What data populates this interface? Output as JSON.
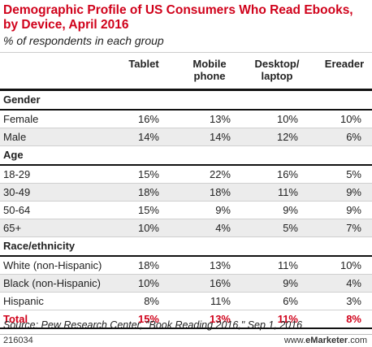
{
  "title": "Demographic Profile of US Consumers Who Read Ebooks, by Device, April 2016",
  "subtitle": "% of respondents in each group",
  "columns": [
    "Tablet",
    "Mobile phone",
    "Desktop/ laptop",
    "Ereader"
  ],
  "sections": [
    {
      "name": "Gender",
      "rows": [
        {
          "label": "Female",
          "values": [
            "16%",
            "13%",
            "10%",
            "10%"
          ]
        },
        {
          "label": "Male",
          "values": [
            "14%",
            "14%",
            "12%",
            "6%"
          ]
        }
      ]
    },
    {
      "name": "Age",
      "rows": [
        {
          "label": "18-29",
          "values": [
            "15%",
            "22%",
            "16%",
            "5%"
          ]
        },
        {
          "label": "30-49",
          "values": [
            "18%",
            "18%",
            "11%",
            "9%"
          ]
        },
        {
          "label": "50-64",
          "values": [
            "15%",
            "9%",
            "9%",
            "9%"
          ]
        },
        {
          "label": "65+",
          "values": [
            "10%",
            "4%",
            "5%",
            "7%"
          ]
        }
      ]
    },
    {
      "name": "Race/ethnicity",
      "rows": [
        {
          "label": "White (non-Hispanic)",
          "values": [
            "18%",
            "13%",
            "11%",
            "10%"
          ]
        },
        {
          "label": "Black (non-Hispanic)",
          "values": [
            "10%",
            "16%",
            "9%",
            "4%"
          ]
        },
        {
          "label": "Hispanic",
          "values": [
            "8%",
            "11%",
            "6%",
            "3%"
          ]
        }
      ]
    }
  ],
  "total": {
    "label": "Total",
    "values": [
      "15%",
      "13%",
      "11%",
      "8%"
    ]
  },
  "source": "Source: Pew Research Center, \"Book Reading 2016,\" Sep 1, 2016",
  "footer": {
    "id": "216034",
    "url_prefix": "www.",
    "url_brand": "eMarketer",
    "url_suffix": ".com"
  },
  "colors": {
    "accent": "#d0021b",
    "alt_row": "#ececec"
  },
  "chart_data": {
    "type": "table",
    "title": "Demographic Profile of US Consumers Who Read Ebooks, by Device, April 2016",
    "subtitle": "% of respondents in each group",
    "columns": [
      "Tablet",
      "Mobile phone",
      "Desktop/laptop",
      "Ereader"
    ],
    "rows": [
      {
        "group": "Gender",
        "label": "Female",
        "values": [
          16,
          13,
          10,
          10
        ]
      },
      {
        "group": "Gender",
        "label": "Male",
        "values": [
          14,
          14,
          12,
          6
        ]
      },
      {
        "group": "Age",
        "label": "18-29",
        "values": [
          15,
          22,
          16,
          5
        ]
      },
      {
        "group": "Age",
        "label": "30-49",
        "values": [
          18,
          18,
          11,
          9
        ]
      },
      {
        "group": "Age",
        "label": "50-64",
        "values": [
          15,
          9,
          9,
          9
        ]
      },
      {
        "group": "Age",
        "label": "65+",
        "values": [
          10,
          4,
          5,
          7
        ]
      },
      {
        "group": "Race/ethnicity",
        "label": "White (non-Hispanic)",
        "values": [
          18,
          13,
          11,
          10
        ]
      },
      {
        "group": "Race/ethnicity",
        "label": "Black (non-Hispanic)",
        "values": [
          10,
          16,
          9,
          4
        ]
      },
      {
        "group": "Race/ethnicity",
        "label": "Hispanic",
        "values": [
          8,
          11,
          6,
          3
        ]
      },
      {
        "group": "",
        "label": "Total",
        "values": [
          15,
          13,
          11,
          8
        ]
      }
    ]
  }
}
